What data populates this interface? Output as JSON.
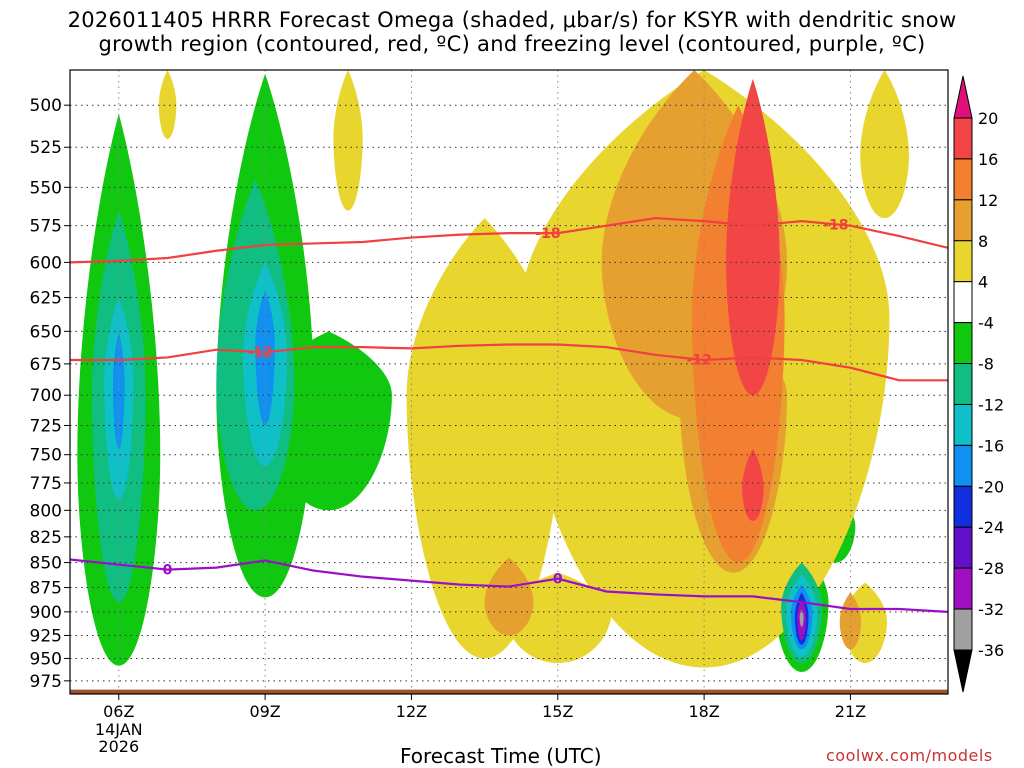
{
  "title": {
    "line1": "2026011405 HRRR Forecast Omega (shaded, μbar/s) for KSYR with dendritic snow",
    "line2": "growth region (contoured, red, ºC) and freezing level (contoured, purple, ºC)"
  },
  "xlabel": "Forecast Time (UTC)",
  "credit": "coolwx.com/models",
  "colors": {
    "dgz_contour": "#f04040",
    "freezing_contour": "#9a10c8",
    "ground": "#a0522d",
    "grid": "#888888"
  },
  "chart_data": {
    "type": "heatmap",
    "title": "2026011405 HRRR Forecast Omega (shaded, μbar/s) for KSYR with dendritic snow growth region (contoured, red, ºC) and freezing level (contoured, purple, ºC)",
    "xlabel": "Forecast Time (UTC)",
    "ylabel": "",
    "x_ticks": [
      "06Z",
      "09Z",
      "12Z",
      "15Z",
      "18Z",
      "21Z"
    ],
    "x_tick_hours": [
      6,
      9,
      12,
      15,
      18,
      21
    ],
    "x_date_label": [
      "14JAN",
      "2026"
    ],
    "xlim_hours": [
      5,
      23
    ],
    "y_ticks": [
      500,
      525,
      550,
      575,
      600,
      625,
      650,
      675,
      700,
      725,
      750,
      775,
      800,
      825,
      850,
      875,
      900,
      925,
      950,
      975
    ],
    "ylim": [
      480,
      990
    ],
    "y_scale": "log-pressure",
    "grid": true,
    "colorbar": {
      "ticks": [
        20,
        16,
        12,
        8,
        4,
        -4,
        -8,
        -12,
        -16,
        -20,
        -24,
        -28,
        -32,
        -36
      ],
      "bins": [
        {
          "range": [
            20,
            null
          ],
          "color": "#e0107a"
        },
        {
          "range": [
            16,
            20
          ],
          "color": "#f24646"
        },
        {
          "range": [
            12,
            16
          ],
          "color": "#f28030"
        },
        {
          "range": [
            8,
            12
          ],
          "color": "#e6a030"
        },
        {
          "range": [
            4,
            8
          ],
          "color": "#e8d62e"
        },
        {
          "range": [
            -4,
            4
          ],
          "color": "#ffffff"
        },
        {
          "range": [
            -8,
            -4
          ],
          "color": "#10c810"
        },
        {
          "range": [
            -12,
            -8
          ],
          "color": "#10be82"
        },
        {
          "range": [
            -16,
            -12
          ],
          "color": "#10c0c8"
        },
        {
          "range": [
            -20,
            -16
          ],
          "color": "#1090f0"
        },
        {
          "range": [
            -24,
            -20
          ],
          "color": "#1030e0"
        },
        {
          "range": [
            -28,
            -24
          ],
          "color": "#6010c8"
        },
        {
          "range": [
            -32,
            -28
          ],
          "color": "#a010c0"
        },
        {
          "range": [
            -36,
            -32
          ],
          "color": "#a0a0a0"
        },
        {
          "range": [
            null,
            -36
          ],
          "color": "#000000"
        }
      ]
    },
    "omega_regions": [
      {
        "level": -4,
        "hour": 6.0,
        "p": 750,
        "hw": 0.85,
        "top": 505,
        "bottom": 958
      },
      {
        "level": -4,
        "hour": 9.0,
        "p": 700,
        "hw": 1.0,
        "top": 482,
        "bottom": 885
      },
      {
        "level": -4,
        "hour": 10.3,
        "p": 700,
        "hw": 1.3,
        "top": 650,
        "bottom": 800
      },
      {
        "level": -4,
        "hour": 20.0,
        "p": 890,
        "hw": 0.55,
        "top": 838,
        "bottom": 965
      },
      {
        "level": -4,
        "hour": 20.7,
        "p": 815,
        "hw": 0.4,
        "top": 785,
        "bottom": 850
      },
      {
        "level": -8,
        "hour": 6.0,
        "p": 700,
        "hw": 0.55,
        "top": 565,
        "bottom": 890
      },
      {
        "level": -8,
        "hour": 8.8,
        "p": 690,
        "hw": 0.8,
        "top": 545,
        "bottom": 800
      },
      {
        "level": -8,
        "hour": 20.0,
        "p": 895,
        "hw": 0.42,
        "top": 850,
        "bottom": 955
      },
      {
        "level": -12,
        "hour": 6.0,
        "p": 690,
        "hw": 0.3,
        "top": 625,
        "bottom": 790
      },
      {
        "level": -12,
        "hour": 9.0,
        "p": 670,
        "hw": 0.45,
        "top": 600,
        "bottom": 760
      },
      {
        "level": -12,
        "hour": 20.0,
        "p": 900,
        "hw": 0.32,
        "top": 862,
        "bottom": 948
      },
      {
        "level": -16,
        "hour": 6.0,
        "p": 690,
        "hw": 0.12,
        "top": 650,
        "bottom": 745
      },
      {
        "level": -16,
        "hour": 9.0,
        "p": 660,
        "hw": 0.2,
        "top": 620,
        "bottom": 725
      },
      {
        "level": -16,
        "hour": 20.0,
        "p": 902,
        "hw": 0.22,
        "top": 872,
        "bottom": 940
      },
      {
        "level": -20,
        "hour": 20.0,
        "p": 905,
        "hw": 0.14,
        "top": 880,
        "bottom": 935
      },
      {
        "level": -28,
        "hour": 20.0,
        "p": 905,
        "hw": 0.09,
        "top": 888,
        "bottom": 930
      },
      {
        "level": -32,
        "hour": 20.0,
        "p": 905,
        "hw": 0.04,
        "top": 898,
        "bottom": 916
      },
      {
        "level": 4,
        "hour": 7.0,
        "p": 500,
        "hw": 0.18,
        "top": 480,
        "bottom": 520
      },
      {
        "level": 4,
        "hour": 10.7,
        "p": 520,
        "hw": 0.3,
        "top": 480,
        "bottom": 565
      },
      {
        "level": 4,
        "hour": 13.5,
        "p": 700,
        "hw": 1.6,
        "top": 570,
        "bottom": 950
      },
      {
        "level": 4,
        "hour": 15.0,
        "p": 900,
        "hw": 1.1,
        "top": 860,
        "bottom": 955
      },
      {
        "level": 4,
        "hour": 18.0,
        "p": 640,
        "hw": 3.8,
        "top": 480,
        "bottom": 960
      },
      {
        "level": 4,
        "hour": 21.3,
        "p": 910,
        "hw": 0.45,
        "top": 870,
        "bottom": 955
      },
      {
        "level": 4,
        "hour": 21.7,
        "p": 530,
        "hw": 0.5,
        "top": 480,
        "bottom": 570
      },
      {
        "level": 8,
        "hour": 17.8,
        "p": 600,
        "hw": 1.9,
        "top": 480,
        "bottom": 720
      },
      {
        "level": 8,
        "hour": 18.6,
        "p": 700,
        "hw": 1.1,
        "top": 650,
        "bottom": 860
      },
      {
        "level": 8,
        "hour": 14.0,
        "p": 890,
        "hw": 0.5,
        "top": 845,
        "bottom": 925
      },
      {
        "level": 8,
        "hour": 21.0,
        "p": 910,
        "hw": 0.22,
        "top": 880,
        "bottom": 940
      },
      {
        "level": 12,
        "hour": 18.7,
        "p": 640,
        "hw": 0.95,
        "top": 500,
        "bottom": 850
      },
      {
        "level": 16,
        "hour": 19.0,
        "p": 600,
        "hw": 0.55,
        "top": 485,
        "bottom": 700
      },
      {
        "level": 16,
        "hour": 19.0,
        "p": 780,
        "hw": 0.22,
        "top": 745,
        "bottom": 810
      }
    ],
    "dgz_contours": [
      {
        "label": "-18",
        "label_hour": 14.8,
        "label_hour2": 20.7,
        "points": [
          [
            5,
            600
          ],
          [
            6,
            599
          ],
          [
            7,
            597
          ],
          [
            8,
            592
          ],
          [
            9,
            588
          ],
          [
            10,
            587
          ],
          [
            11,
            586
          ],
          [
            12,
            583
          ],
          [
            13,
            581
          ],
          [
            14,
            580
          ],
          [
            15,
            580
          ],
          [
            16,
            575
          ],
          [
            17,
            570
          ],
          [
            18,
            572
          ],
          [
            19,
            575
          ],
          [
            20,
            572
          ],
          [
            21,
            575
          ],
          [
            22,
            582
          ],
          [
            23,
            590
          ]
        ]
      },
      {
        "label": "-12",
        "label_hour": 8.9,
        "label_hour2": 17.9,
        "points": [
          [
            5,
            672
          ],
          [
            6,
            672
          ],
          [
            7,
            670
          ],
          [
            8,
            664
          ],
          [
            9,
            666
          ],
          [
            10,
            662
          ],
          [
            11,
            662
          ],
          [
            12,
            663
          ],
          [
            13,
            661
          ],
          [
            14,
            660
          ],
          [
            15,
            660
          ],
          [
            16,
            662
          ],
          [
            17,
            668
          ],
          [
            18,
            672
          ],
          [
            19,
            670
          ],
          [
            20,
            672
          ],
          [
            21,
            678
          ],
          [
            22,
            688
          ],
          [
            23,
            688
          ]
        ]
      }
    ],
    "freezing_contour": {
      "label": "0",
      "label_hour": 7.0,
      "label_hour2": 15.0,
      "points": [
        [
          5,
          847
        ],
        [
          6,
          852
        ],
        [
          7,
          857
        ],
        [
          8,
          855
        ],
        [
          9,
          848
        ],
        [
          10,
          858
        ],
        [
          11,
          864
        ],
        [
          12,
          868
        ],
        [
          13,
          872
        ],
        [
          14,
          874
        ],
        [
          15,
          866
        ],
        [
          16,
          879
        ],
        [
          17,
          882
        ],
        [
          18,
          884
        ],
        [
          19,
          884
        ],
        [
          20,
          890
        ],
        [
          21,
          897
        ],
        [
          22,
          897
        ],
        [
          23,
          900
        ]
      ]
    },
    "ground_pressure": 985
  }
}
